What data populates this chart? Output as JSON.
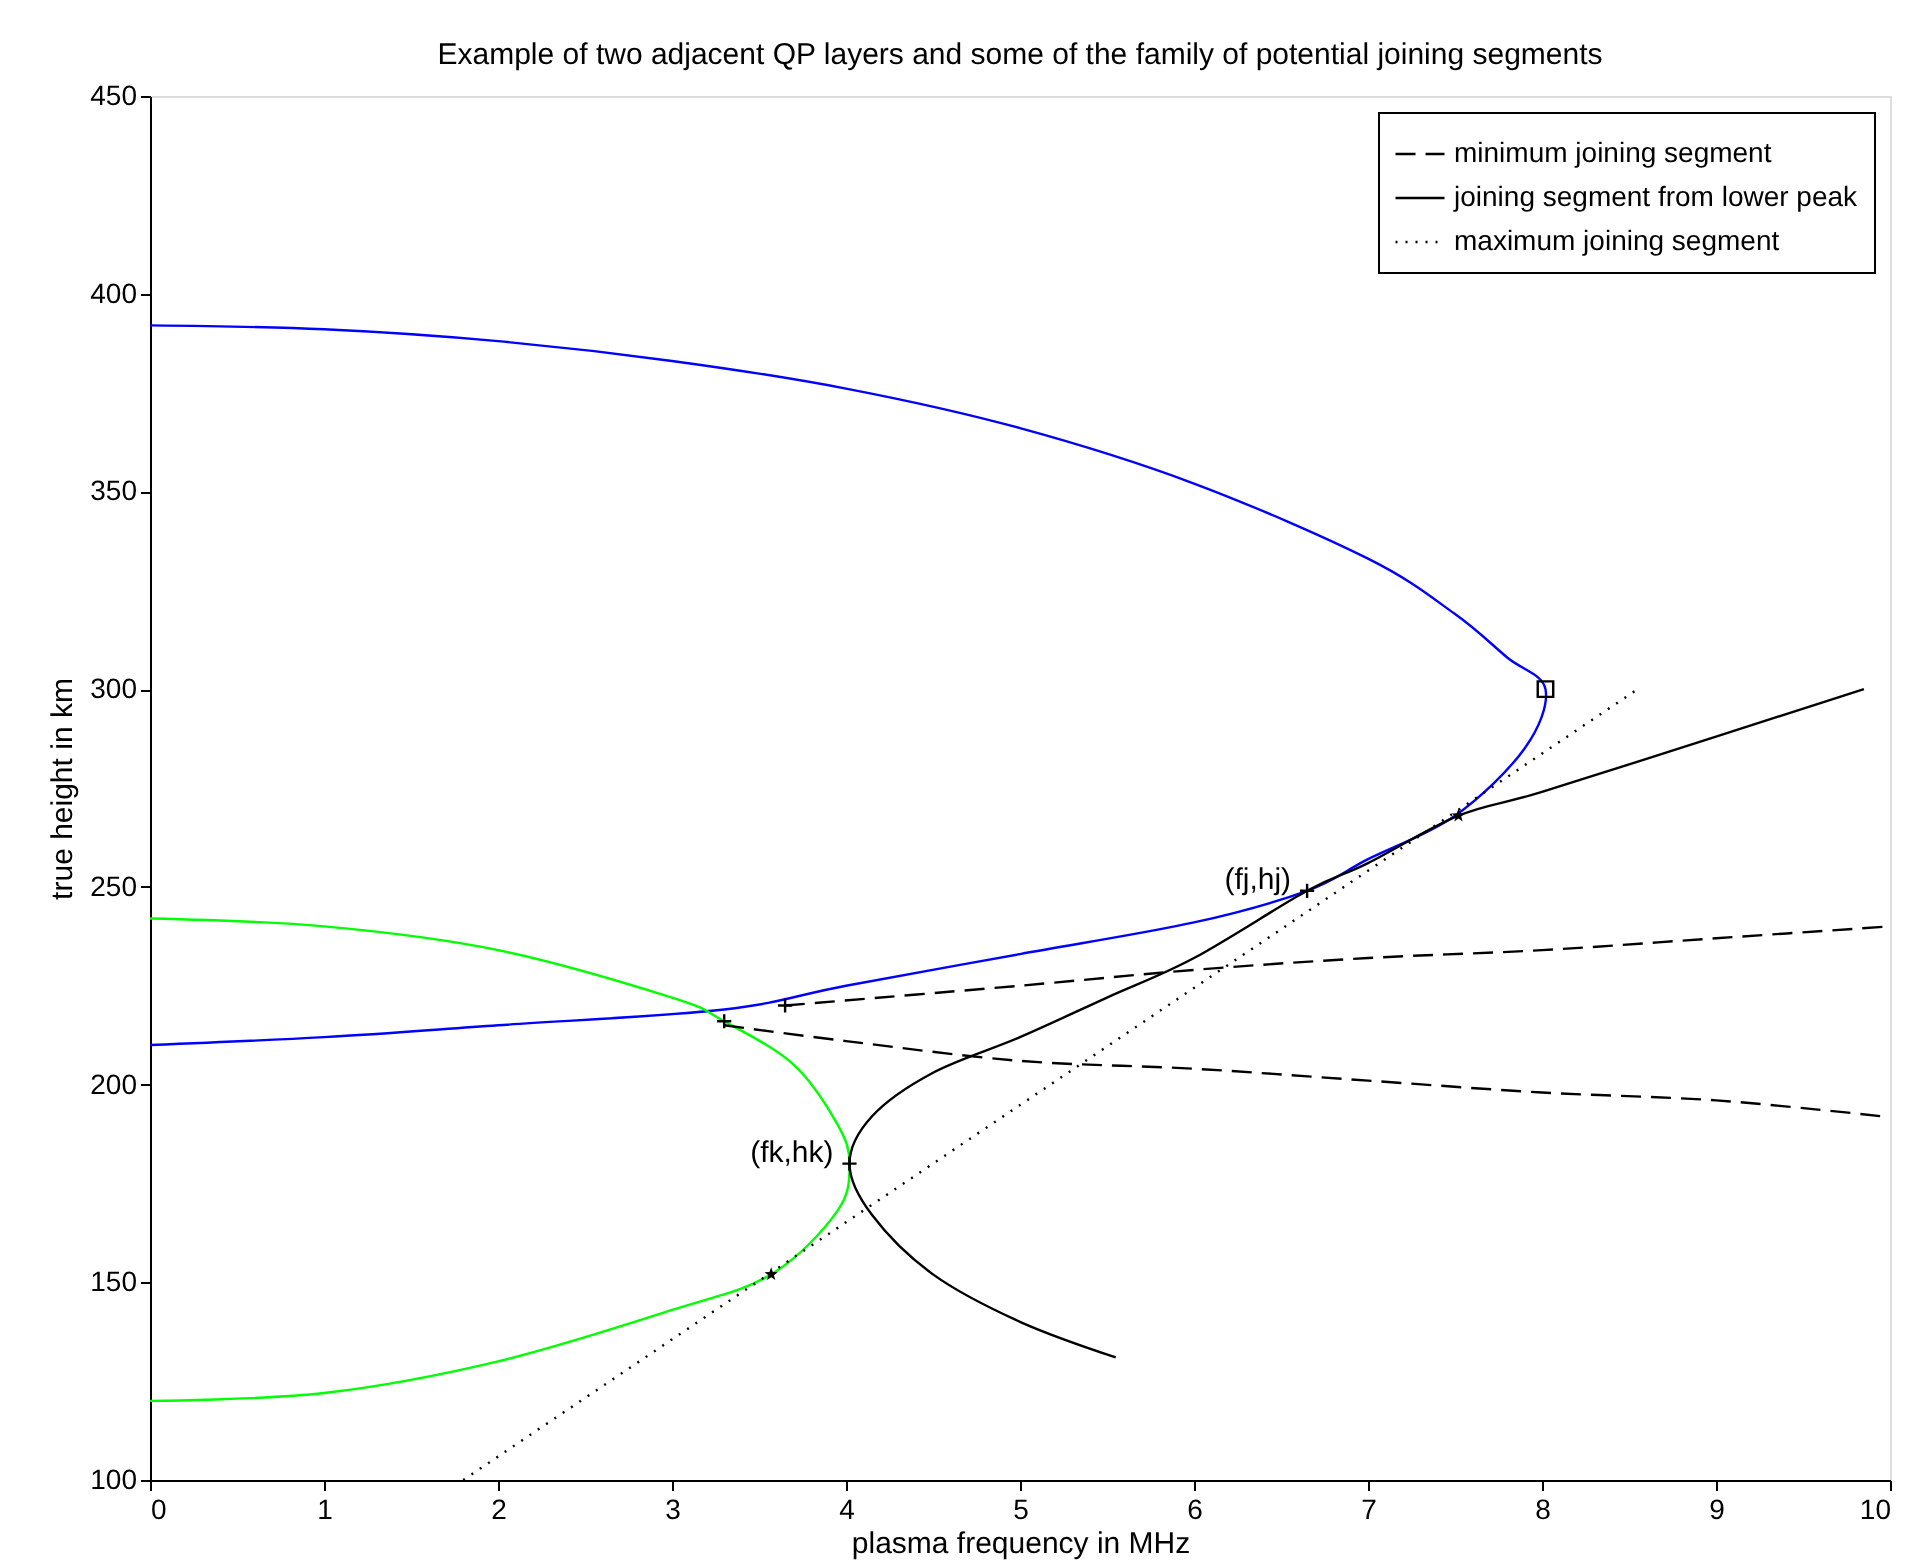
{
  "chart_data": {
    "type": "line",
    "title": "Example of two adjacent QP layers and some of the family of potential joining segments",
    "xlabel": "plasma frequency in MHz",
    "ylabel": "true height in km",
    "xlim": [
      0,
      10
    ],
    "xticks": [
      0,
      1,
      2,
      3,
      4,
      5,
      6,
      7,
      8,
      9,
      10
    ],
    "ylim": [
      100,
      450
    ],
    "yticks": [
      100,
      150,
      200,
      250,
      300,
      350,
      400,
      450
    ],
    "grid": false,
    "legend": "top right",
    "series": [
      {
        "type": "line",
        "color": "#0000ff",
        "line_style": "solid",
        "x": [
          0,
          1,
          2,
          3,
          4,
          5,
          6,
          7,
          7.5,
          7.8,
          8.02,
          7.9,
          7.5,
          7,
          6.65,
          6,
          5,
          4,
          3.3,
          2,
          1,
          0
        ],
        "values": [
          392,
          391,
          388,
          383,
          376,
          366,
          352,
          333,
          319,
          308,
          300,
          285,
          268,
          257,
          249,
          241,
          233,
          225,
          219,
          215,
          212,
          210
        ]
      },
      {
        "type": "line",
        "color": "#00ff00",
        "line_style": "solid",
        "x": [
          0,
          1,
          2,
          3,
          3.3,
          3.7,
          3.95,
          4.02,
          3.95,
          3.57,
          3,
          2,
          1,
          0
        ],
        "values": [
          242,
          240,
          234,
          222,
          216,
          205,
          190,
          180,
          168,
          152,
          143,
          130,
          122,
          120
        ]
      },
      {
        "type": "line",
        "name": "minimum joining segment",
        "color": "#000000",
        "line_style": "dashed",
        "x": [
          3.65,
          5,
          6,
          7,
          8,
          9,
          10
        ],
        "values": [
          220,
          225,
          229,
          232,
          234,
          237,
          240
        ]
      },
      {
        "type": "line",
        "color": "#000000",
        "line_style": "dashed",
        "x": [
          3.3,
          4,
          5,
          6,
          7,
          8,
          9,
          9.95
        ],
        "values": [
          215,
          211,
          206,
          204,
          201,
          198,
          196,
          192
        ]
      },
      {
        "type": "line",
        "name": "joining segment from lower peak",
        "color": "#000000",
        "line_style": "solid",
        "x": [
          5.55,
          5,
          4.5,
          4.15,
          4.02,
          4.15,
          4.5,
          5,
          5.5,
          6,
          6.65,
          7,
          7.52,
          8,
          9,
          9.85
        ],
        "values": [
          131,
          140,
          152,
          167,
          180,
          192,
          203,
          212,
          222,
          232,
          249,
          256,
          268,
          274,
          288,
          300
        ]
      },
      {
        "type": "line",
        "name": "maximum joining segment",
        "color": "#000000",
        "line_style": "dotted",
        "x": [
          1.8,
          8.55
        ],
        "values": [
          100,
          300
        ]
      },
      {
        "type": "scatter",
        "color": "#000000",
        "marker": "square",
        "x": [
          8.02
        ],
        "values": [
          300
        ]
      },
      {
        "type": "scatter",
        "color": "#000000",
        "marker": "star",
        "x": [
          7.52,
          3.57
        ],
        "values": [
          268,
          152
        ]
      },
      {
        "type": "scatter",
        "color": "#000000",
        "marker": "cross",
        "x": [
          6.65,
          4.02,
          3.3,
          3.65
        ],
        "values": [
          249,
          180,
          216,
          220
        ]
      }
    ],
    "annotations": [
      {
        "text": "(fj,hj)",
        "x": 6.65,
        "y": 249
      },
      {
        "text": "(fk,hk)",
        "x": 4.02,
        "y": 180
      }
    ]
  }
}
